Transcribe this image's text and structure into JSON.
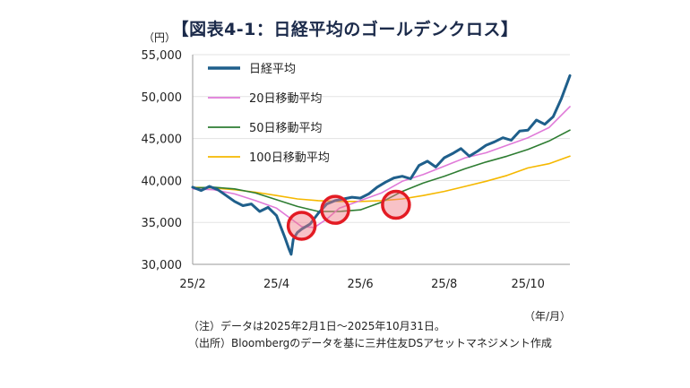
{
  "title": "【図表4-1：日経平均のゴールデンクロス】",
  "unit_y": "（円）",
  "unit_x": "（年/月）",
  "notes": [
    "（注）データは2025年2月1日～2025年10月31日。",
    "（出所）Bloombergのデータを基に三井住友DSアセットマネジメント作成"
  ],
  "colors": {
    "nikkei": "#1f5f8b",
    "ma20": "#e07ad8",
    "ma50": "#2e7d32",
    "ma100": "#f5b800",
    "circle": "#e31b23"
  },
  "chart_data": {
    "type": "line",
    "title": "【図表4-1：日経平均のゴールデンクロス】",
    "ylabel": "（円）",
    "xlabel": "（年/月）",
    "ylim": [
      30000,
      55000
    ],
    "yticks": [
      30000,
      35000,
      40000,
      45000,
      50000,
      55000
    ],
    "ytick_labels": [
      "30,000",
      "35,000",
      "40,000",
      "45,000",
      "50,000",
      "55,000"
    ],
    "xticks": [
      0,
      2,
      4,
      6,
      8
    ],
    "xtick_labels": [
      "25/2",
      "25/4",
      "25/6",
      "25/8",
      "25/10"
    ],
    "xlim": [
      0,
      9
    ],
    "legend": "top-left",
    "series": [
      {
        "name": "日経平均",
        "key": "nikkei",
        "x": [
          0,
          0.2,
          0.4,
          0.6,
          0.8,
          1.0,
          1.2,
          1.4,
          1.6,
          1.8,
          2.0,
          2.1,
          2.2,
          2.3,
          2.35,
          2.4,
          2.5,
          2.6,
          2.8,
          3.0,
          3.2,
          3.4,
          3.6,
          3.8,
          4.0,
          4.2,
          4.4,
          4.6,
          4.8,
          5.0,
          5.2,
          5.4,
          5.6,
          5.8,
          6.0,
          6.2,
          6.4,
          6.6,
          6.8,
          7.0,
          7.2,
          7.4,
          7.6,
          7.8,
          8.0,
          8.2,
          8.4,
          8.6,
          8.8,
          9.0
        ],
        "values": [
          39200,
          38800,
          39300,
          38900,
          38200,
          37500,
          37000,
          37200,
          36300,
          36800,
          35800,
          34500,
          33200,
          31800,
          31200,
          33000,
          33800,
          34200,
          34800,
          36100,
          37200,
          37600,
          37800,
          38000,
          37900,
          38400,
          39200,
          39800,
          40300,
          40500,
          40200,
          41800,
          42300,
          41600,
          42700,
          43200,
          43800,
          42900,
          43500,
          44200,
          44600,
          45100,
          44800,
          45900,
          46000,
          47200,
          46700,
          47600,
          49800,
          52500
        ]
      },
      {
        "name": "20日移動平均",
        "key": "ma20",
        "x": [
          0,
          0.5,
          1.0,
          1.5,
          2.0,
          2.3,
          2.6,
          2.9,
          3.2,
          3.5,
          4.0,
          4.5,
          5.0,
          5.5,
          6.0,
          6.5,
          7.0,
          7.5,
          8.0,
          8.5,
          9.0
        ],
        "values": [
          39000,
          38900,
          38400,
          37600,
          36700,
          35600,
          34500,
          34400,
          35400,
          36700,
          37600,
          38500,
          39900,
          40700,
          41700,
          42700,
          43300,
          44200,
          45100,
          46300,
          48800
        ]
      },
      {
        "name": "50日移動平均",
        "key": "ma50",
        "x": [
          0,
          0.5,
          1.0,
          1.5,
          2.0,
          2.5,
          3.0,
          3.5,
          4.0,
          4.5,
          5.0,
          5.5,
          6.0,
          6.5,
          7.0,
          7.5,
          8.0,
          8.5,
          9.0
        ],
        "values": [
          39100,
          39200,
          39000,
          38500,
          37700,
          36900,
          36300,
          36300,
          36500,
          37400,
          38700,
          39700,
          40500,
          41400,
          42200,
          42900,
          43700,
          44700,
          46000
        ]
      },
      {
        "name": "100日移動平均",
        "key": "ma100",
        "x": [
          0,
          0.5,
          1.0,
          1.5,
          2.0,
          2.5,
          3.0,
          3.5,
          4.0,
          4.5,
          5.0,
          5.5,
          6.0,
          6.5,
          7.0,
          7.5,
          8.0,
          8.5,
          9.0
        ],
        "values": [
          39200,
          39100,
          38900,
          38600,
          38200,
          37800,
          37600,
          37500,
          37500,
          37600,
          37800,
          38200,
          38700,
          39300,
          39900,
          40600,
          41500,
          42000,
          42900
        ]
      }
    ],
    "annotations": [
      {
        "type": "circle",
        "x": 2.6,
        "y": 34600,
        "label": ""
      },
      {
        "type": "circle",
        "x": 3.4,
        "y": 36500,
        "label": ""
      },
      {
        "type": "circle",
        "x": 4.85,
        "y": 37100,
        "label": ""
      }
    ]
  }
}
